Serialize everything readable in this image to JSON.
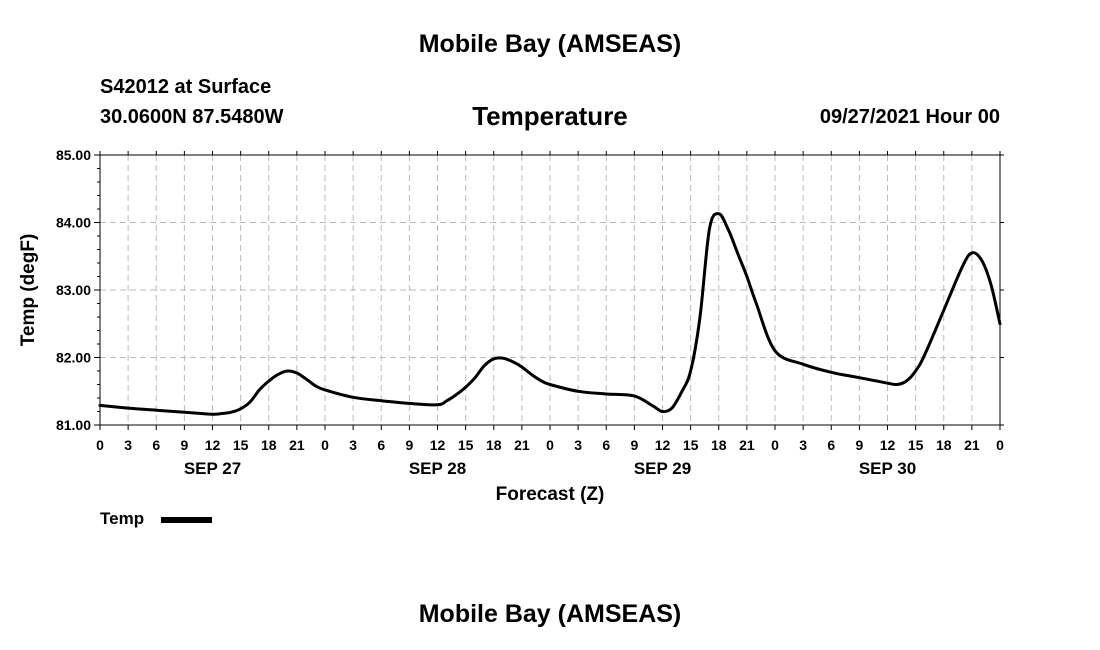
{
  "header": {
    "title": "Mobile Bay (AMSEAS)",
    "station": "S42012 at Surface",
    "coords": "30.0600N  87.5480W",
    "parameter": "Temperature",
    "datetime": "09/27/2021 Hour 00"
  },
  "footer": {
    "title": "Mobile Bay (AMSEAS)"
  },
  "legend": {
    "label": "Temp"
  },
  "chart_data": {
    "type": "line",
    "xlabel": "Forecast (Z)",
    "ylabel": "Temp (degF)",
    "ylim": [
      81.0,
      85.0
    ],
    "xlim": [
      0,
      96
    ],
    "grid": true,
    "legend_position": "bottom-left",
    "y_ticks": [
      "81.00",
      "82.00",
      "83.00",
      "84.00",
      "85.00"
    ],
    "x_ticks": [
      "0",
      "3",
      "6",
      "9",
      "12",
      "15",
      "18",
      "21",
      "0",
      "3",
      "6",
      "9",
      "12",
      "15",
      "18",
      "21",
      "0",
      "3",
      "6",
      "9",
      "12",
      "15",
      "18",
      "21",
      "0",
      "3",
      "6",
      "9",
      "12",
      "15",
      "18",
      "21",
      "0"
    ],
    "day_labels": [
      {
        "label": "SEP 27",
        "hour": 12
      },
      {
        "label": "SEP 28",
        "hour": 36
      },
      {
        "label": "SEP 29",
        "hour": 60
      },
      {
        "label": "SEP 30",
        "hour": 84
      }
    ],
    "series": [
      {
        "name": "Temp",
        "color": "#000000",
        "x": [
          0,
          3,
          6,
          9,
          12,
          13,
          14,
          15,
          16,
          17,
          18,
          19,
          20,
          21,
          22,
          23,
          24,
          27,
          30,
          33,
          36,
          37,
          38,
          39,
          40,
          41,
          42,
          43,
          44,
          45,
          46,
          47,
          48,
          51,
          54,
          57,
          59,
          60,
          61,
          62,
          63,
          64,
          65,
          66,
          67,
          68,
          69,
          70,
          72,
          75,
          78,
          81,
          84,
          85,
          86,
          87,
          88,
          90,
          92,
          93,
          94,
          95,
          96
        ],
        "y": [
          81.29,
          81.25,
          81.22,
          81.19,
          81.16,
          81.17,
          81.19,
          81.24,
          81.34,
          81.52,
          81.65,
          81.75,
          81.8,
          81.77,
          81.68,
          81.58,
          81.52,
          81.41,
          81.36,
          81.32,
          81.3,
          81.36,
          81.45,
          81.56,
          81.7,
          81.88,
          81.98,
          81.99,
          81.94,
          81.86,
          81.75,
          81.66,
          81.6,
          81.5,
          81.46,
          81.43,
          81.28,
          81.2,
          81.25,
          81.48,
          81.8,
          82.6,
          83.9,
          84.13,
          83.9,
          83.55,
          83.2,
          82.8,
          82.1,
          81.9,
          81.78,
          81.7,
          81.62,
          81.6,
          81.65,
          81.8,
          82.05,
          82.7,
          83.35,
          83.55,
          83.45,
          83.1,
          82.5
        ]
      }
    ]
  }
}
